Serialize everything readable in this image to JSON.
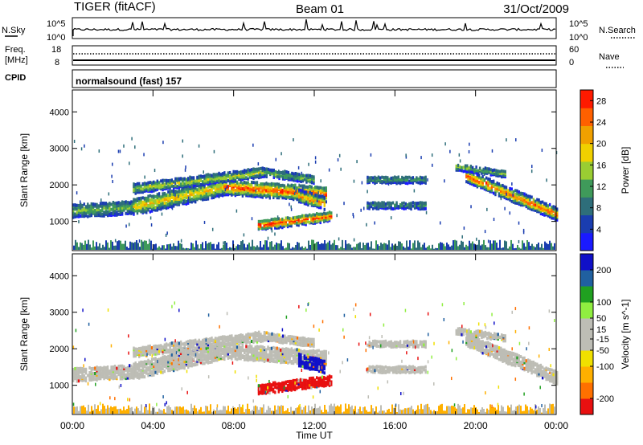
{
  "header": {
    "radar": "TIGER (fitACF)",
    "beam": "Beam 01",
    "date": "31/Oct/2009"
  },
  "top_panels": {
    "nsky_label": "N.Sky",
    "nsky_top_tick": "10^5",
    "nsky_bottom_tick": "10^0",
    "nsearch_label": "N.Search",
    "nsearch_top_tick": "10^5",
    "nsearch_bottom_tick": "10^0",
    "freq_label_1": "Freq.",
    "freq_label_2": "[MHz]",
    "freq_top_tick": "18",
    "freq_bottom_tick": "8",
    "nave_label": "Nave",
    "nave_top_tick": "60",
    "nave_bottom_tick": "0",
    "cpid_label": "CPID",
    "cpid_value": "normalsound (fast) 157"
  },
  "colors": {
    "power_scale": [
      "#1a1aff",
      "#1a3db0",
      "#2e6e7a",
      "#3f9a5a",
      "#9acd32",
      "#f0d000",
      "#f0a000",
      "#ff6000",
      "#ff1a00"
    ],
    "velocity_scale": [
      "#e81010",
      "#ff7000",
      "#ffb000",
      "#f0e000",
      "#bdbdb5",
      "#bdbdb5",
      "#90ee40",
      "#20a020",
      "#2060a0",
      "#1010c8"
    ]
  },
  "chart_data": [
    {
      "type": "heatmap",
      "name": "power",
      "ylabel": "Slant Range [km]",
      "xlabel": "",
      "yticks": [
        "1000",
        "2000",
        "3000",
        "4000"
      ],
      "ylim": [
        200,
        4600
      ],
      "xlim": [
        0,
        24
      ],
      "colorbar_label": "Power [dB]",
      "colorbar_ticks": [
        "4",
        "8",
        "12",
        "16",
        "20",
        "24",
        "28"
      ],
      "colorbar_range": [
        0,
        30
      ]
    },
    {
      "type": "heatmap",
      "name": "velocity",
      "ylabel": "Slant Range [km]",
      "xlabel": "Time UT",
      "xticks": [
        "00:00",
        "04:00",
        "08:00",
        "12:00",
        "16:00",
        "20:00",
        "00:00"
      ],
      "yticks": [
        "1000",
        "2000",
        "3000",
        "4000"
      ],
      "ylim": [
        200,
        4600
      ],
      "xlim": [
        0,
        24
      ],
      "colorbar_label": "Velocity [m s^-1]",
      "colorbar_ticks": [
        "-200",
        "-100",
        "-50",
        "-15",
        "15",
        "50",
        "100",
        "200"
      ],
      "colorbar_range": [
        -250,
        250
      ]
    }
  ]
}
